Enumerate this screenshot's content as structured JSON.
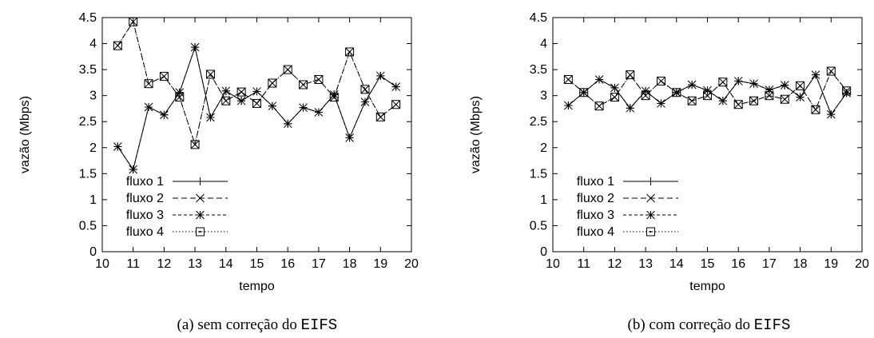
{
  "chart_data": [
    {
      "type": "line",
      "xlabel": "tempo",
      "ylabel": "vazão (Mbps)",
      "xlim": [
        10,
        20
      ],
      "ylim": [
        0,
        4.5
      ],
      "xticks": [
        "10",
        "11",
        "12",
        "13",
        "14",
        "15",
        "16",
        "17",
        "18",
        "19",
        "20"
      ],
      "yticks": [
        "0",
        "0.5",
        "1",
        "1.5",
        "2",
        "2.5",
        "3",
        "3.5",
        "4",
        "4.5"
      ],
      "caption_label": "(a)",
      "caption_text": "sem correção do",
      "caption_code": "EIFS",
      "legend_position": "bottom-left",
      "series": [
        {
          "name": "fluxo 1",
          "marker": "plus",
          "dash": "solid",
          "x": [
            10.5,
            11,
            11.5,
            12,
            12.5,
            13,
            13.5,
            14,
            14.5,
            15,
            15.5,
            16,
            16.5,
            17,
            17.5,
            18,
            18.5,
            19,
            19.5
          ],
          "y": [
            2.02,
            1.58,
            2.78,
            2.63,
            3.06,
            3.93,
            2.58,
            3.09,
            2.9,
            3.08,
            2.8,
            2.46,
            2.77,
            2.68,
            3.02,
            2.19,
            2.88,
            3.38,
            3.17
          ]
        },
        {
          "name": "fluxo 2",
          "marker": "x",
          "dash": "dashed",
          "x": [
            10.5,
            11,
            11.5,
            12,
            12.5,
            13,
            13.5,
            14,
            14.5,
            15,
            15.5,
            16,
            16.5,
            17,
            17.5,
            18,
            18.5,
            19,
            19.5
          ],
          "y": [
            3.96,
            4.42,
            3.23,
            3.37,
            2.97,
            2.06,
            3.41,
            2.9,
            3.07,
            2.85,
            3.24,
            3.5,
            3.21,
            3.31,
            2.97,
            3.84,
            3.12,
            2.59,
            2.83
          ]
        },
        {
          "name": "fluxo 3",
          "marker": "star",
          "dash": "dashed-fine",
          "x": [
            10.5,
            11,
            11.5,
            12,
            12.5,
            13,
            13.5,
            14,
            14.5,
            15,
            15.5,
            16,
            16.5,
            17,
            17.5,
            18,
            18.5,
            19,
            19.5
          ],
          "y": [
            2.02,
            1.58,
            2.78,
            2.63,
            3.06,
            3.93,
            2.58,
            3.09,
            2.9,
            3.08,
            2.8,
            2.46,
            2.77,
            2.68,
            3.02,
            2.19,
            2.88,
            3.38,
            3.17
          ]
        },
        {
          "name": "fluxo 4",
          "marker": "square",
          "dash": "dotted",
          "x": [
            10.5,
            11,
            11.5,
            12,
            12.5,
            13,
            13.5,
            14,
            14.5,
            15,
            15.5,
            16,
            16.5,
            17,
            17.5,
            18,
            18.5,
            19,
            19.5
          ],
          "y": [
            3.96,
            4.42,
            3.23,
            3.37,
            2.97,
            2.06,
            3.41,
            2.9,
            3.07,
            2.85,
            3.24,
            3.5,
            3.21,
            3.31,
            2.97,
            3.84,
            3.12,
            2.59,
            2.83
          ]
        }
      ]
    },
    {
      "type": "line",
      "xlabel": "tempo",
      "ylabel": "vazão (Mbps)",
      "xlim": [
        10,
        20
      ],
      "ylim": [
        0,
        4.5
      ],
      "xticks": [
        "10",
        "11",
        "12",
        "13",
        "14",
        "15",
        "16",
        "17",
        "18",
        "19",
        "20"
      ],
      "yticks": [
        "0",
        "0.5",
        "1",
        "1.5",
        "2",
        "2.5",
        "3",
        "3.5",
        "4",
        "4.5"
      ],
      "caption_label": "(b)",
      "caption_text": "com correção do",
      "caption_code": "EIFS",
      "legend_position": "bottom-left",
      "series": [
        {
          "name": "fluxo 1",
          "marker": "plus",
          "dash": "solid",
          "x": [
            10.5,
            11,
            11.5,
            12,
            12.5,
            13,
            13.5,
            14,
            14.5,
            15,
            15.5,
            16,
            16.5,
            17,
            17.5,
            18,
            18.5,
            19,
            19.5
          ],
          "y": [
            2.81,
            3.06,
            3.31,
            3.15,
            2.76,
            3.09,
            2.85,
            3.06,
            3.21,
            3.1,
            2.9,
            3.28,
            3.23,
            3.11,
            3.2,
            2.97,
            3.4,
            2.64,
            3.05
          ]
        },
        {
          "name": "fluxo 2",
          "marker": "x",
          "dash": "dashed",
          "x": [
            10.5,
            11,
            11.5,
            12,
            12.5,
            13,
            13.5,
            14,
            14.5,
            15,
            15.5,
            16,
            16.5,
            17,
            17.5,
            18,
            18.5,
            19,
            19.5
          ],
          "y": [
            3.31,
            3.06,
            2.8,
            2.97,
            3.4,
            3.0,
            3.28,
            3.06,
            2.9,
            3.0,
            3.26,
            2.83,
            2.9,
            3.0,
            2.93,
            3.19,
            2.73,
            3.47,
            3.09
          ]
        },
        {
          "name": "fluxo 3",
          "marker": "star",
          "dash": "dashed-fine",
          "x": [
            10.5,
            11,
            11.5,
            12,
            12.5,
            13,
            13.5,
            14,
            14.5,
            15,
            15.5,
            16,
            16.5,
            17,
            17.5,
            18,
            18.5,
            19,
            19.5
          ],
          "y": [
            2.81,
            3.06,
            3.31,
            3.15,
            2.76,
            3.09,
            2.85,
            3.06,
            3.21,
            3.1,
            2.9,
            3.28,
            3.23,
            3.11,
            3.2,
            2.97,
            3.4,
            2.64,
            3.05
          ]
        },
        {
          "name": "fluxo 4",
          "marker": "square",
          "dash": "dotted",
          "x": [
            10.5,
            11,
            11.5,
            12,
            12.5,
            13,
            13.5,
            14,
            14.5,
            15,
            15.5,
            16,
            16.5,
            17,
            17.5,
            18,
            18.5,
            19,
            19.5
          ],
          "y": [
            3.31,
            3.06,
            2.8,
            2.97,
            3.4,
            3.0,
            3.28,
            3.06,
            2.9,
            3.0,
            3.26,
            2.83,
            2.9,
            3.0,
            2.93,
            3.19,
            2.73,
            3.47,
            3.09
          ]
        }
      ]
    }
  ]
}
